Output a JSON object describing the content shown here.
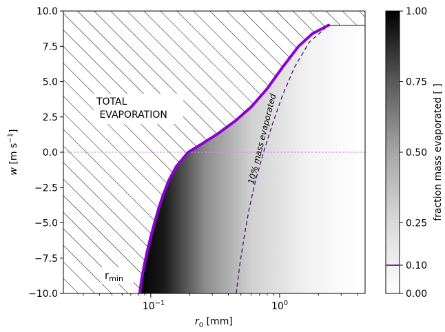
{
  "chart_data": {
    "type": "heatmap",
    "xscale": "log",
    "xlim": [
      0.021,
      4.6
    ],
    "ylim": [
      -10.0,
      10.0
    ],
    "xlabel_var": "r",
    "xlabel_sub": "0",
    "xlabel_unit": "[mm]",
    "ylabel_var": "w",
    "ylabel_unit": "[m s",
    "ylabel_exp": "−1",
    "ylabel_close": "]",
    "x_ticks": [
      {
        "value": 0.1,
        "base": "10",
        "exp": "−1"
      },
      {
        "value": 1.0,
        "base": "10",
        "exp": "0"
      }
    ],
    "y_ticks": [
      "10.0",
      "7.5",
      "5.0",
      "2.5",
      "0.0",
      "−2.5",
      "−5.0",
      "−7.5",
      "−10.0"
    ],
    "y_tick_values": [
      10.0,
      7.5,
      5.0,
      2.5,
      0.0,
      -2.5,
      -5.0,
      -7.5,
      -10.0
    ],
    "r_min_curve": {
      "label_main": "r",
      "label_sub": "min",
      "color": "#8b00d6",
      "points": [
        [
          0.082,
          -10.0
        ],
        [
          0.085,
          -9.0
        ],
        [
          0.089,
          -8.0
        ],
        [
          0.094,
          -7.0
        ],
        [
          0.1,
          -6.0
        ],
        [
          0.107,
          -5.0
        ],
        [
          0.115,
          -4.0
        ],
        [
          0.125,
          -3.0
        ],
        [
          0.138,
          -2.0
        ],
        [
          0.158,
          -1.0
        ],
        [
          0.195,
          0.0
        ],
        [
          0.25,
          0.6
        ],
        [
          0.33,
          1.3
        ],
        [
          0.45,
          2.2
        ],
        [
          0.6,
          3.2
        ],
        [
          0.8,
          4.5
        ],
        [
          1.05,
          6.0
        ],
        [
          1.4,
          7.5
        ],
        [
          1.8,
          8.4
        ],
        [
          2.4,
          9.0
        ]
      ]
    },
    "contour_10pct": {
      "label": "10% mass evaporated",
      "color": "#3a1078",
      "points": [
        [
          0.46,
          -10.0
        ],
        [
          0.49,
          -8.0
        ],
        [
          0.53,
          -6.0
        ],
        [
          0.58,
          -4.0
        ],
        [
          0.65,
          -2.0
        ],
        [
          0.75,
          0.0
        ],
        [
          0.88,
          2.0
        ],
        [
          1.05,
          4.0
        ],
        [
          1.3,
          6.0
        ],
        [
          1.7,
          7.8
        ],
        [
          2.4,
          9.0
        ]
      ]
    },
    "zero_line": {
      "y": 0.0,
      "color": "#d48be0"
    },
    "hatched_region_label_line1": "TOTAL",
    "hatched_region_label_line2": " EVAPORATION",
    "colorbar": {
      "label": "fraction mass evaporated [ ]",
      "ticks": [
        "1.00",
        "0.75",
        "0.50",
        "0.25",
        "0.10",
        "0.00"
      ],
      "tick_values": [
        1.0,
        0.75,
        0.5,
        0.25,
        0.1,
        0.0
      ],
      "marker_value": 0.1,
      "marker_color": "#7a2bb0",
      "range": [
        0.0,
        1.0
      ]
    }
  }
}
